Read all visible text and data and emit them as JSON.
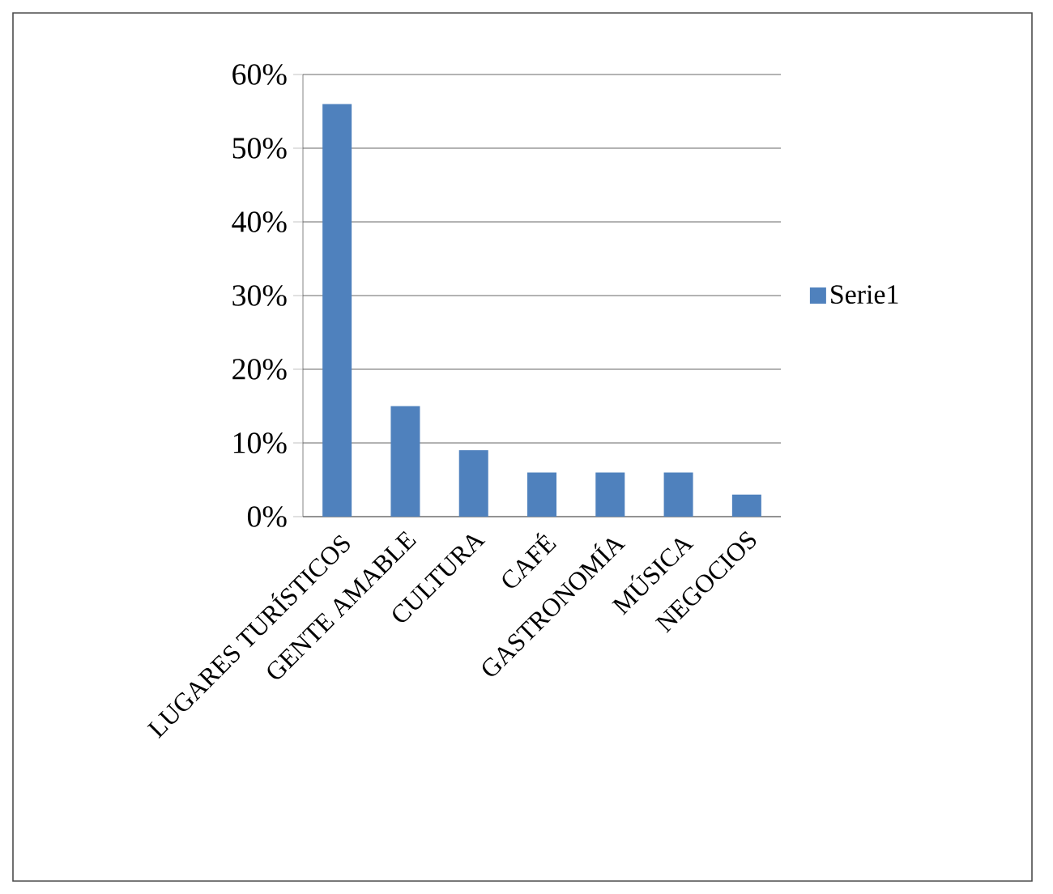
{
  "chart_data": {
    "type": "bar",
    "categories": [
      "LUGARES TURÍSTICOS",
      "GENTE AMABLE",
      "CULTURA",
      "CAFÉ",
      "GASTRONOMÍA",
      "MÚSICA",
      "NEGOCIOS"
    ],
    "series": [
      {
        "name": "Serie1",
        "color": "#4f81bd",
        "values": [
          56,
          15,
          9,
          6,
          6,
          6,
          3
        ]
      }
    ],
    "ylim": [
      0,
      60
    ],
    "yticks": [
      {
        "value": 0,
        "label": "0%"
      },
      {
        "value": 10,
        "label": "10%"
      },
      {
        "value": 20,
        "label": "20%"
      },
      {
        "value": 30,
        "label": "30%"
      },
      {
        "value": 40,
        "label": "40%"
      },
      {
        "value": 50,
        "label": "50%"
      },
      {
        "value": 60,
        "label": "60%"
      }
    ],
    "grid": "y",
    "legend": "right"
  }
}
